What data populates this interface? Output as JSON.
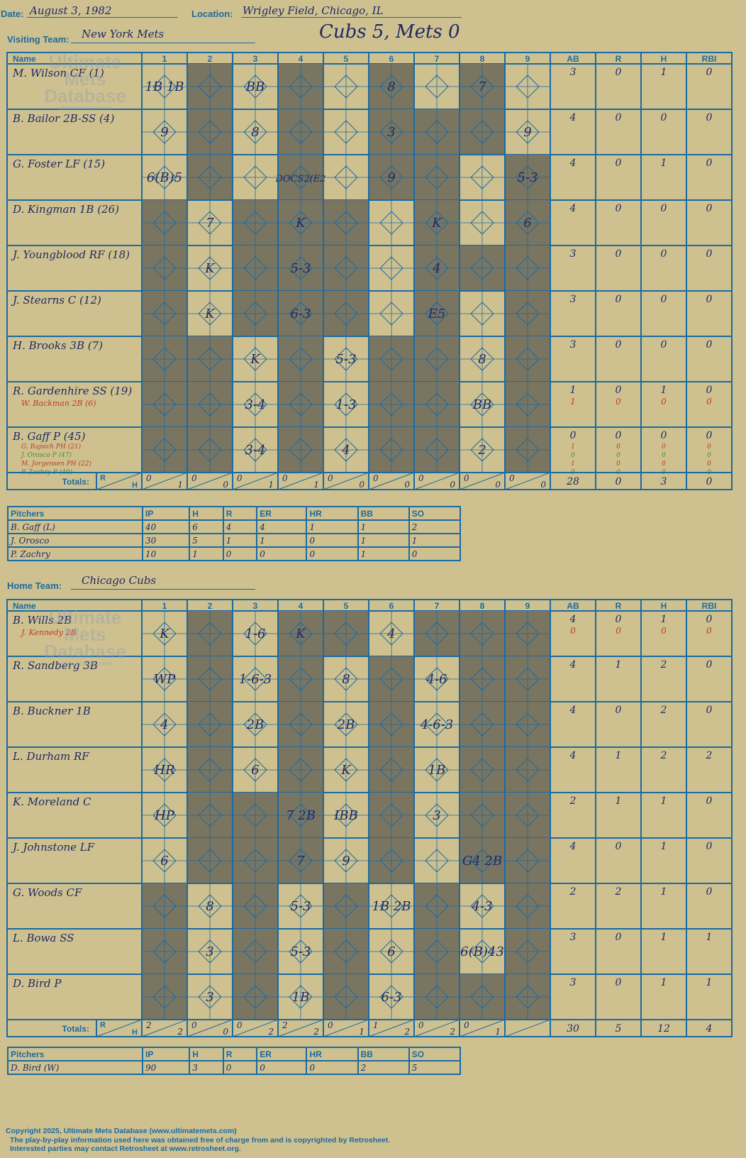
{
  "header": {
    "date_label": "Date:",
    "date": "August 3, 1982",
    "location_label": "Location:",
    "location": "Wrigley Field, Chicago, IL",
    "result": "Cubs 5, Mets 0"
  },
  "visitors": {
    "team_label": "Visiting Team:",
    "team": "New York Mets",
    "col_headers": [
      "Name",
      "1",
      "2",
      "3",
      "4",
      "5",
      "6",
      "7",
      "8",
      "9",
      "AB",
      "R",
      "H",
      "RBI"
    ],
    "rows": [
      {
        "name": "M. Wilson CF (1)",
        "sub": "",
        "stats": [
          "3",
          "0",
          "1",
          "0"
        ]
      },
      {
        "name": "B. Bailor 2B-SS (4)",
        "sub": "",
        "stats": [
          "4",
          "0",
          "0",
          "0"
        ]
      },
      {
        "name": "G. Foster LF (15)",
        "sub": "",
        "stats": [
          "4",
          "0",
          "1",
          "0"
        ]
      },
      {
        "name": "D. Kingman 1B (26)",
        "sub": "",
        "stats": [
          "4",
          "0",
          "0",
          "0"
        ]
      },
      {
        "name": "J. Youngblood RF (18)",
        "sub": "",
        "stats": [
          "3",
          "0",
          "0",
          "0"
        ]
      },
      {
        "name": "J. Stearns C (12)",
        "sub": "",
        "stats": [
          "3",
          "0",
          "0",
          "0"
        ]
      },
      {
        "name": "H. Brooks 3B (7)",
        "sub": "",
        "stats": [
          "3",
          "0",
          "0",
          "0"
        ]
      },
      {
        "name": "R. Gardenhire SS (19)",
        "sub": "W. Backman 2B (6)",
        "stats": [
          "1",
          "0",
          "1",
          "0"
        ],
        "sub_stats": [
          "1",
          "0",
          "0",
          "0"
        ]
      },
      {
        "name": "B. Gaff P (45)",
        "sub": "",
        "stats": [
          "0",
          "0",
          "0",
          "0"
        ]
      }
    ],
    "extra_subs": [
      "G. Rajsich PH (21)",
      "J. Orosco P (47)",
      "M. Jorgensen PH (22)",
      "P. Zachry P (40)"
    ],
    "extra_sub_stats": [
      [
        "1",
        "0",
        "0",
        "0"
      ],
      [
        "0",
        "0",
        "0",
        "0"
      ],
      [
        "1",
        "0",
        "0",
        "0"
      ],
      [
        "0",
        "0",
        "0",
        "0"
      ]
    ],
    "totals_label": "Totals:",
    "rh_label_r": "R",
    "rh_label_h": "H",
    "inning_totals": [
      [
        "0",
        "1"
      ],
      [
        "0",
        "0"
      ],
      [
        "0",
        "1"
      ],
      [
        "0",
        "1"
      ],
      [
        "0",
        "0"
      ],
      [
        "0",
        "0"
      ],
      [
        "0",
        "0"
      ],
      [
        "0",
        "0"
      ],
      [
        "0",
        "0"
      ]
    ],
    "totals": [
      "28",
      "0",
      "3",
      "0"
    ],
    "cells": [
      [
        "1B  1B",
        "",
        "BB",
        "",
        "",
        "8",
        "",
        "7",
        ""
      ],
      [
        "9",
        "",
        "8",
        "",
        "",
        "3",
        "",
        "",
        "9"
      ],
      [
        "6(B)5",
        "",
        "",
        "DOCS2(E2",
        "",
        "9",
        "",
        "",
        "5-3"
      ],
      [
        "",
        "7",
        "",
        "K",
        "",
        "",
        "K",
        "",
        "6"
      ],
      [
        "",
        "K",
        "",
        "5-3",
        "",
        "",
        "4",
        "",
        ""
      ],
      [
        "",
        "K",
        "",
        "6-3",
        "",
        "",
        "E5",
        "",
        ""
      ],
      [
        "",
        "",
        "K",
        "",
        "5-3",
        "",
        "",
        "8",
        ""
      ],
      [
        "",
        "",
        "3-4",
        "",
        "1-3",
        "",
        "",
        "BB",
        ""
      ],
      [
        "",
        "",
        "3-4",
        "",
        "4",
        "",
        "",
        "2",
        ""
      ]
    ]
  },
  "visitor_pitchers": {
    "headers": [
      "Pitchers",
      "IP",
      "H",
      "R",
      "ER",
      "HR",
      "BB",
      "SO"
    ],
    "rows": [
      [
        "B. Gaff (L)",
        "40",
        "6",
        "4",
        "4",
        "1",
        "1",
        "2"
      ],
      [
        "J. Orosco",
        "30",
        "5",
        "1",
        "1",
        "0",
        "1",
        "1"
      ],
      [
        "P. Zachry",
        "10",
        "1",
        "0",
        "0",
        "0",
        "1",
        "0"
      ]
    ]
  },
  "home": {
    "team_label": "Home Team:",
    "team": "Chicago Cubs",
    "col_headers": [
      "Name",
      "1",
      "2",
      "3",
      "4",
      "5",
      "6",
      "7",
      "8",
      "9",
      "AB",
      "R",
      "H",
      "RBI"
    ],
    "rows": [
      {
        "name": "B. Wills 2B",
        "sub": "J. Kennedy 2B",
        "stats": [
          "4",
          "0",
          "1",
          "0"
        ],
        "sub_stats": [
          "0",
          "0",
          "0",
          "0"
        ]
      },
      {
        "name": "R. Sandberg 3B",
        "sub": "",
        "stats": [
          "4",
          "1",
          "2",
          "0"
        ]
      },
      {
        "name": "B. Buckner 1B",
        "sub": "",
        "stats": [
          "4",
          "0",
          "2",
          "0"
        ]
      },
      {
        "name": "L. Durham RF",
        "sub": "",
        "stats": [
          "4",
          "1",
          "2",
          "2"
        ]
      },
      {
        "name": "K. Moreland C",
        "sub": "",
        "stats": [
          "2",
          "1",
          "1",
          "0"
        ]
      },
      {
        "name": "J. Johnstone LF",
        "sub": "",
        "stats": [
          "4",
          "0",
          "1",
          "0"
        ]
      },
      {
        "name": "G. Woods CF",
        "sub": "",
        "stats": [
          "2",
          "2",
          "1",
          "0"
        ]
      },
      {
        "name": "L. Bowa SS",
        "sub": "",
        "stats": [
          "3",
          "0",
          "1",
          "1"
        ]
      },
      {
        "name": "D. Bird P",
        "sub": "",
        "stats": [
          "3",
          "0",
          "1",
          "1"
        ]
      }
    ],
    "totals_label": "Totals:",
    "rh_label_r": "R",
    "rh_label_h": "H",
    "inning_totals": [
      [
        "2",
        "2"
      ],
      [
        "0",
        "0"
      ],
      [
        "0",
        "2"
      ],
      [
        "2",
        "2"
      ],
      [
        "0",
        "1"
      ],
      [
        "1",
        "2"
      ],
      [
        "0",
        "2"
      ],
      [
        "0",
        "1"
      ],
      [
        "",
        ""
      ]
    ],
    "totals": [
      "30",
      "5",
      "12",
      "4"
    ],
    "cells": [
      [
        "K",
        "",
        "1-6",
        "K",
        "",
        "4",
        "",
        "",
        ""
      ],
      [
        "WP",
        "",
        "1-6-3",
        "",
        "8",
        "",
        "4-6",
        "",
        ""
      ],
      [
        "4",
        "",
        "2B",
        "",
        "2B",
        "",
        "4-6-3",
        "",
        ""
      ],
      [
        "HR",
        "",
        "6",
        "",
        "K",
        "",
        "1B",
        "",
        ""
      ],
      [
        "HP",
        "",
        "",
        "7  2B",
        "IBB",
        "",
        "3",
        "",
        ""
      ],
      [
        "6",
        "",
        "",
        "7",
        "9",
        "",
        "",
        "G4 2B",
        ""
      ],
      [
        "",
        "8",
        "",
        "5-3",
        "",
        "1B 2B",
        "",
        "4-3",
        ""
      ],
      [
        "",
        "3",
        "",
        "5-3",
        "",
        "6",
        "",
        "6(B)43",
        ""
      ],
      [
        "",
        "3",
        "",
        "1B",
        "",
        "6-3",
        "",
        "",
        ""
      ]
    ]
  },
  "home_pitchers": {
    "headers": [
      "Pitchers",
      "IP",
      "H",
      "R",
      "ER",
      "HR",
      "BB",
      "SO"
    ],
    "rows": [
      [
        "D. Bird (W)",
        "90",
        "3",
        "0",
        "0",
        "0",
        "2",
        "5"
      ]
    ]
  },
  "watermark": {
    "line1": "Ultimate",
    "line2": "Mets",
    "line3": "Database",
    "url": "ultimatemets.com"
  },
  "footer": {
    "line1": "Copyright 2025, Ultimate Mets Database (www.ultimatemets.com)",
    "line2": "The play-by-play information used here was obtained free of charge from and is copyrighted by Retrosheet.",
    "line3": "Interested parties may contact Retrosheet at www.retrosheet.org."
  },
  "colors": {
    "line": "#1a6aa3",
    "dark": "#7a7560",
    "bg": "#cfc18f",
    "ink": "#1d2a66"
  }
}
